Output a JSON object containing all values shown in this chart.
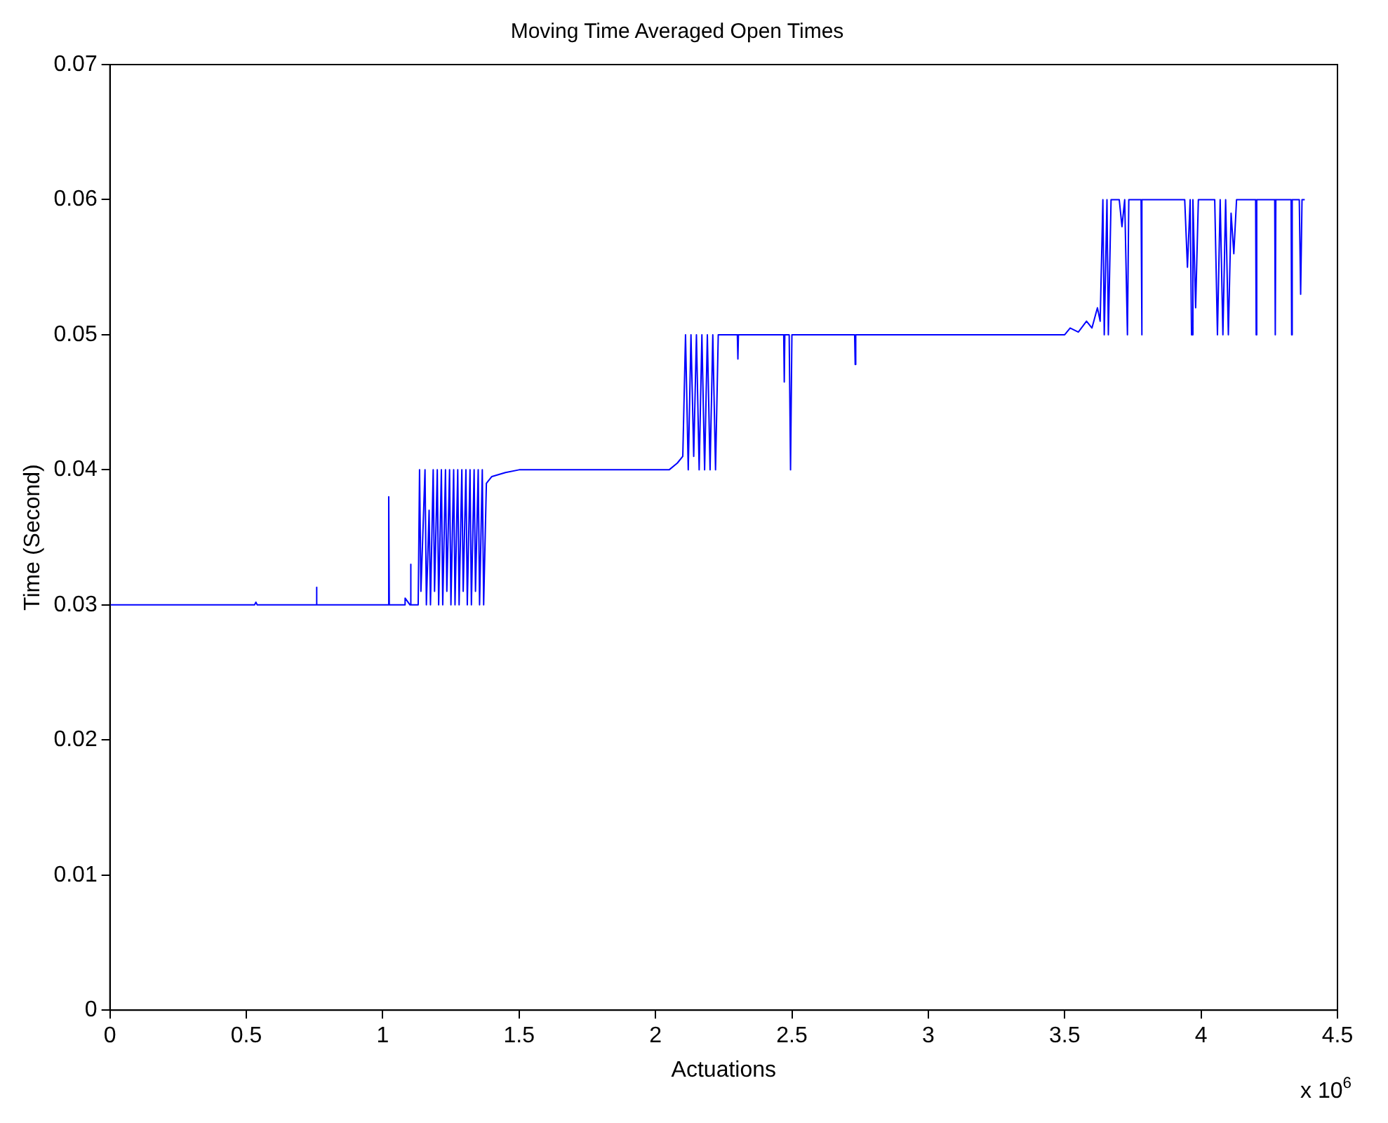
{
  "chart_data": {
    "type": "line",
    "title": "Moving Time Averaged Open Times",
    "xlabel": "Actuations",
    "ylabel": "Time (Second)",
    "annotations": [
      "x 10$^{6}$"
    ],
    "xlim": [
      0,
      4.5
    ],
    "xticks": [
      0,
      0.5,
      1,
      1.5,
      2,
      2.5,
      3,
      3.5,
      4,
      4.5
    ],
    "ylim": [
      0,
      0.07
    ],
    "yticks": [
      0,
      0.01,
      0.02,
      0.03,
      0.04,
      0.05,
      0.06,
      0.07
    ],
    "grid": false,
    "legend": false,
    "marker": "none",
    "line_style": "solid",
    "series": [
      {
        "color": "#0000ff",
        "x": [
          0,
          0.53,
          0.535,
          0.54,
          0.755,
          0.757,
          0.759,
          1.02,
          1.022,
          1.024,
          1.08,
          1.082,
          1.1,
          1.102,
          1.104,
          1.13,
          1.135,
          1.14,
          1.155,
          1.16,
          1.17,
          1.175,
          1.185,
          1.19,
          1.2,
          1.205,
          1.215,
          1.22,
          1.23,
          1.235,
          1.245,
          1.25,
          1.26,
          1.265,
          1.275,
          1.28,
          1.29,
          1.295,
          1.305,
          1.31,
          1.32,
          1.325,
          1.335,
          1.34,
          1.35,
          1.355,
          1.365,
          1.37,
          1.38,
          1.4,
          1.45,
          1.5,
          2.05,
          2.08,
          2.1,
          2.11,
          2.12,
          2.13,
          2.14,
          2.15,
          2.16,
          2.17,
          2.18,
          2.19,
          2.2,
          2.21,
          2.22,
          2.23,
          2.25,
          2.3,
          2.302,
          2.304,
          2.47,
          2.472,
          2.474,
          2.49,
          2.495,
          2.5,
          2.73,
          2.732,
          2.734,
          3.5,
          3.52,
          3.55,
          3.58,
          3.6,
          3.62,
          3.63,
          3.64,
          3.645,
          3.655,
          3.66,
          3.67,
          3.7,
          3.71,
          3.72,
          3.73,
          3.735,
          3.78,
          3.782,
          3.784,
          3.94,
          3.95,
          3.96,
          3.965,
          3.97,
          3.98,
          3.99,
          4.05,
          4.06,
          4.07,
          4.08,
          4.09,
          4.1,
          4.11,
          4.12,
          4.13,
          4.2,
          4.202,
          4.204,
          4.27,
          4.272,
          4.274,
          4.33,
          4.332,
          4.334,
          4.36,
          4.365,
          4.37,
          4.38
        ],
        "values": [
          0.03,
          0.03,
          0.0302,
          0.03,
          0.03,
          0.0313,
          0.03,
          0.03,
          0.038,
          0.03,
          0.03,
          0.0305,
          0.03,
          0.033,
          0.03,
          0.03,
          0.04,
          0.031,
          0.04,
          0.03,
          0.037,
          0.03,
          0.04,
          0.031,
          0.04,
          0.03,
          0.04,
          0.03,
          0.04,
          0.031,
          0.04,
          0.03,
          0.04,
          0.03,
          0.04,
          0.03,
          0.04,
          0.031,
          0.04,
          0.03,
          0.04,
          0.03,
          0.04,
          0.031,
          0.04,
          0.03,
          0.04,
          0.03,
          0.039,
          0.0395,
          0.0398,
          0.04,
          0.04,
          0.0405,
          0.041,
          0.05,
          0.04,
          0.05,
          0.041,
          0.05,
          0.04,
          0.05,
          0.04,
          0.05,
          0.04,
          0.05,
          0.04,
          0.05,
          0.05,
          0.05,
          0.0482,
          0.05,
          0.05,
          0.0465,
          0.05,
          0.05,
          0.04,
          0.05,
          0.05,
          0.0478,
          0.05,
          0.05,
          0.0505,
          0.0502,
          0.051,
          0.0505,
          0.052,
          0.051,
          0.06,
          0.05,
          0.06,
          0.05,
          0.06,
          0.06,
          0.058,
          0.06,
          0.05,
          0.06,
          0.06,
          0.05,
          0.06,
          0.06,
          0.055,
          0.06,
          0.05,
          0.06,
          0.052,
          0.06,
          0.06,
          0.05,
          0.06,
          0.05,
          0.06,
          0.05,
          0.059,
          0.056,
          0.06,
          0.06,
          0.05,
          0.06,
          0.06,
          0.05,
          0.06,
          0.06,
          0.05,
          0.06,
          0.06,
          0.053,
          0.06,
          0.06
        ]
      }
    ]
  }
}
